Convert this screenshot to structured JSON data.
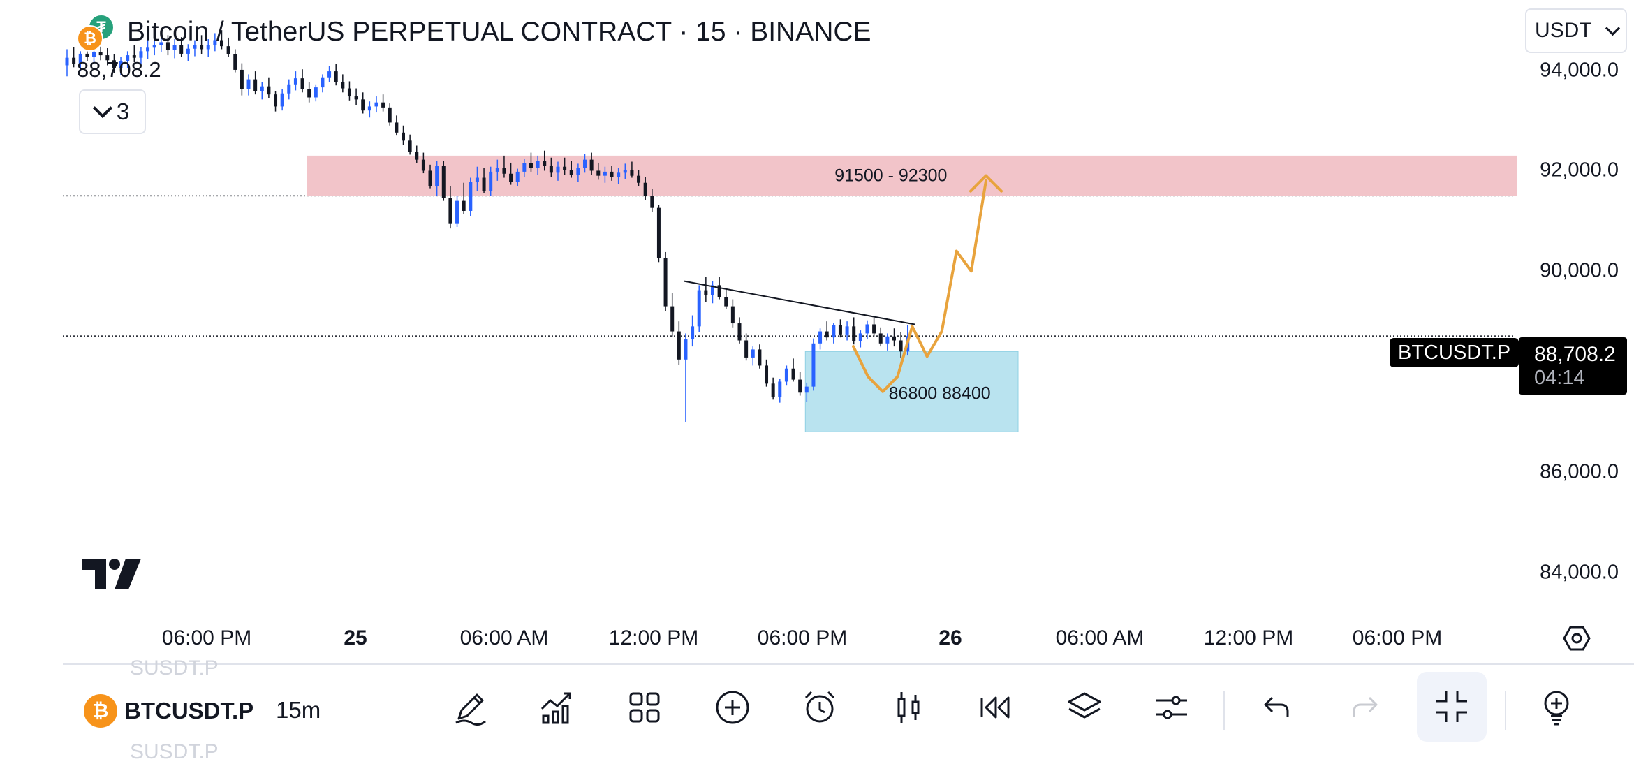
{
  "header": {
    "title": "Bitcoin / TetherUS PERPETUAL CONTRACT · 15 · BINANCE",
    "last_price": "88,708.2",
    "indicators_count": "3",
    "currency": "USDT"
  },
  "colors": {
    "up": "#2962ff",
    "down": "#131722",
    "supply_zone": "#f2c4c9",
    "demand_zone": "#b9e3ef",
    "projection": "#e8a33d",
    "coin_btc": "#f7931a",
    "coin_tether": "#26a17b"
  },
  "price_axis": [
    "94,000.0",
    "92,000.0",
    "90,000.0",
    "86,000.0",
    "84,000.0"
  ],
  "time_axis": [
    {
      "label": "06:00 PM",
      "bold": false
    },
    {
      "label": "25",
      "bold": true
    },
    {
      "label": "06:00 AM",
      "bold": false
    },
    {
      "label": "12:00 PM",
      "bold": false
    },
    {
      "label": "06:00 PM",
      "bold": false
    },
    {
      "label": "26",
      "bold": true
    },
    {
      "label": "06:00 AM",
      "bold": false
    },
    {
      "label": "12:00 PM",
      "bold": false
    },
    {
      "label": "06:00 PM",
      "bold": false
    }
  ],
  "price_badge": {
    "symbol": "BTCUSDT.P",
    "price": "88,708.2",
    "countdown": "04:14"
  },
  "zones": {
    "supply": {
      "label": "91500 - 92300",
      "low": 91500,
      "high": 92300
    },
    "demand": {
      "label": "86800 88400",
      "low": 86800,
      "high": 88400
    }
  },
  "toolbar": {
    "symbol": "BTCUSDT.P",
    "interval": "15m",
    "ghost_above": "SUSDT.P",
    "ghost_below": "SUSDT.P",
    "icons": [
      "draw-icon",
      "indicators-icon",
      "layouts-icon",
      "add-icon",
      "alert-icon",
      "candles-icon",
      "replay-icon",
      "layers-icon",
      "settings-sliders-icon",
      "undo-icon",
      "redo-icon",
      "exit-fullscreen-icon",
      "ideas-icon"
    ]
  },
  "chart_data": {
    "type": "candlestick",
    "symbol": "BTCUSDT.P",
    "interval": "15",
    "ylim": [
      83300,
      95400
    ],
    "price_ticks": [
      94000,
      92000,
      90000,
      86000,
      84000
    ],
    "last_price": 88708.2,
    "candles": [
      [
        94100,
        94420,
        93880,
        94250
      ],
      [
        94250,
        94460,
        94060,
        94130
      ],
      [
        94130,
        94380,
        93980,
        94330
      ],
      [
        94330,
        94520,
        94180,
        94260
      ],
      [
        94260,
        94480,
        94120,
        94360
      ],
      [
        94360,
        94540,
        94200,
        94300
      ],
      [
        94300,
        94440,
        94100,
        94200
      ],
      [
        94200,
        94320,
        93950,
        94040
      ],
      [
        94040,
        94260,
        93900,
        94180
      ],
      [
        94180,
        94380,
        94050,
        94300
      ],
      [
        94300,
        94500,
        94160,
        94250
      ],
      [
        94250,
        94460,
        94100,
        94380
      ],
      [
        94380,
        94600,
        94220,
        94450
      ],
      [
        94450,
        94650,
        94300,
        94500
      ],
      [
        94500,
        94720,
        94360,
        94560
      ],
      [
        94560,
        94700,
        94300,
        94400
      ],
      [
        94400,
        94620,
        94240,
        94500
      ],
      [
        94500,
        94660,
        94260,
        94330
      ],
      [
        94330,
        94520,
        94180,
        94430
      ],
      [
        94430,
        94600,
        94280,
        94500
      ],
      [
        94500,
        94700,
        94320,
        94420
      ],
      [
        94420,
        94620,
        94260,
        94500
      ],
      [
        94500,
        94740,
        94380,
        94600
      ],
      [
        94600,
        94800,
        94420,
        94480
      ],
      [
        94480,
        94650,
        94260,
        94320
      ],
      [
        94320,
        94420,
        93960,
        94010
      ],
      [
        94010,
        94140,
        93500,
        93620
      ],
      [
        93620,
        93920,
        93500,
        93820
      ],
      [
        93820,
        93980,
        93520,
        93580
      ],
      [
        93580,
        93760,
        93420,
        93680
      ],
      [
        93680,
        93860,
        93440,
        93520
      ],
      [
        93520,
        93580,
        93180,
        93280
      ],
      [
        93280,
        93620,
        93200,
        93540
      ],
      [
        93540,
        93820,
        93420,
        93720
      ],
      [
        93720,
        93980,
        93600,
        93840
      ],
      [
        93840,
        94020,
        93560,
        93620
      ],
      [
        93620,
        93760,
        93360,
        93460
      ],
      [
        93460,
        93720,
        93380,
        93660
      ],
      [
        93660,
        93920,
        93560,
        93860
      ],
      [
        93860,
        94080,
        93760,
        93980
      ],
      [
        93980,
        94130,
        93700,
        93760
      ],
      [
        93760,
        93920,
        93560,
        93640
      ],
      [
        93640,
        93780,
        93400,
        93480
      ],
      [
        93480,
        93640,
        93300,
        93420
      ],
      [
        93420,
        93560,
        93140,
        93200
      ],
      [
        93200,
        93380,
        93060,
        93280
      ],
      [
        93280,
        93480,
        93160,
        93360
      ],
      [
        93360,
        93520,
        93180,
        93260
      ],
      [
        93260,
        93340,
        92900,
        92960
      ],
      [
        92960,
        93100,
        92700,
        92760
      ],
      [
        92760,
        92900,
        92520,
        92600
      ],
      [
        92600,
        92720,
        92320,
        92380
      ],
      [
        92380,
        92500,
        92160,
        92220
      ],
      [
        92220,
        92360,
        91950,
        92000
      ],
      [
        92000,
        92120,
        91650,
        91700
      ],
      [
        91700,
        92200,
        91500,
        92100
      ],
      [
        92100,
        92200,
        91400,
        91460
      ],
      [
        91460,
        91700,
        90850,
        90940
      ],
      [
        90940,
        91500,
        90880,
        91400
      ],
      [
        91400,
        91760,
        91140,
        91200
      ],
      [
        91200,
        91860,
        91100,
        91780
      ],
      [
        91780,
        92080,
        91600,
        91860
      ],
      [
        91860,
        92060,
        91550,
        91600
      ],
      [
        91600,
        92080,
        91500,
        91980
      ],
      [
        91980,
        92220,
        91800,
        92060
      ],
      [
        92060,
        92300,
        91860,
        91940
      ],
      [
        91940,
        92160,
        91720,
        91780
      ],
      [
        91780,
        92040,
        91700,
        91980
      ],
      [
        91980,
        92240,
        91880,
        92150
      ],
      [
        92150,
        92360,
        91980,
        92060
      ],
      [
        92060,
        92300,
        91920,
        92200
      ],
      [
        92200,
        92400,
        92000,
        92100
      ],
      [
        92100,
        92260,
        91880,
        91960
      ],
      [
        91960,
        92180,
        91800,
        92080
      ],
      [
        92080,
        92260,
        91920,
        92010
      ],
      [
        92010,
        92200,
        91860,
        91920
      ],
      [
        91920,
        92140,
        91780,
        92060
      ],
      [
        92060,
        92340,
        91960,
        92220
      ],
      [
        92220,
        92360,
        91920,
        92000
      ],
      [
        92000,
        92160,
        91820,
        91900
      ],
      [
        91900,
        92080,
        91760,
        91980
      ],
      [
        91980,
        92100,
        91800,
        91880
      ],
      [
        91880,
        92060,
        91740,
        91960
      ],
      [
        91960,
        92140,
        91840,
        92020
      ],
      [
        92020,
        92180,
        91860,
        91900
      ],
      [
        91900,
        92020,
        91700,
        91760
      ],
      [
        91760,
        91880,
        91420,
        91500
      ],
      [
        91500,
        91640,
        91180,
        91260
      ],
      [
        91260,
        91320,
        90180,
        90260
      ],
      [
        90260,
        90380,
        89200,
        89300
      ],
      [
        89300,
        89560,
        88700,
        88800
      ],
      [
        88800,
        89000,
        88140,
        88240
      ],
      [
        88240,
        88760,
        87000,
        88640
      ],
      [
        88640,
        89120,
        88500,
        88900
      ],
      [
        88900,
        89720,
        88780,
        89620
      ],
      [
        89620,
        89880,
        89380,
        89520
      ],
      [
        89520,
        89800,
        89360,
        89720
      ],
      [
        89720,
        89880,
        89440,
        89480
      ],
      [
        89480,
        89640,
        89240,
        89300
      ],
      [
        89300,
        89440,
        88880,
        88960
      ],
      [
        88960,
        89080,
        88560,
        88620
      ],
      [
        88620,
        88760,
        88220,
        88280
      ],
      [
        88280,
        88500,
        88120,
        88440
      ],
      [
        88440,
        88540,
        88060,
        88120
      ],
      [
        88120,
        88240,
        87700,
        87760
      ],
      [
        87760,
        87880,
        87440,
        87500
      ],
      [
        87500,
        87860,
        87380,
        87800
      ],
      [
        87800,
        88120,
        87720,
        88060
      ],
      [
        88060,
        88260,
        87800,
        87840
      ],
      [
        87840,
        88000,
        87520,
        87580
      ],
      [
        87580,
        87780,
        87400,
        87700
      ],
      [
        87700,
        88660,
        87620,
        88560
      ],
      [
        88560,
        88860,
        88440,
        88800
      ],
      [
        88800,
        89000,
        88620,
        88680
      ],
      [
        88680,
        88960,
        88560,
        88920
      ],
      [
        88920,
        89040,
        88680,
        88740
      ],
      [
        88740,
        89000,
        88620,
        88900
      ],
      [
        88900,
        89080,
        88540,
        88600
      ],
      [
        88600,
        88820,
        88480,
        88760
      ],
      [
        88760,
        89020,
        88640,
        88940
      ],
      [
        88940,
        89060,
        88700,
        88760
      ],
      [
        88760,
        88880,
        88500,
        88560
      ],
      [
        88560,
        88760,
        88420,
        88700
      ],
      [
        88700,
        88860,
        88500,
        88620
      ],
      [
        88620,
        88780,
        88280,
        88400
      ],
      [
        88400,
        88920,
        88320,
        88708.2
      ]
    ],
    "trendline": {
      "from": 89800,
      "to": 88940
    },
    "projection_path": [
      88500,
      87900,
      87600,
      87900,
      88900,
      88300,
      88800,
      90400,
      90000,
      91800
    ],
    "projection_arrow_top": 91900
  }
}
